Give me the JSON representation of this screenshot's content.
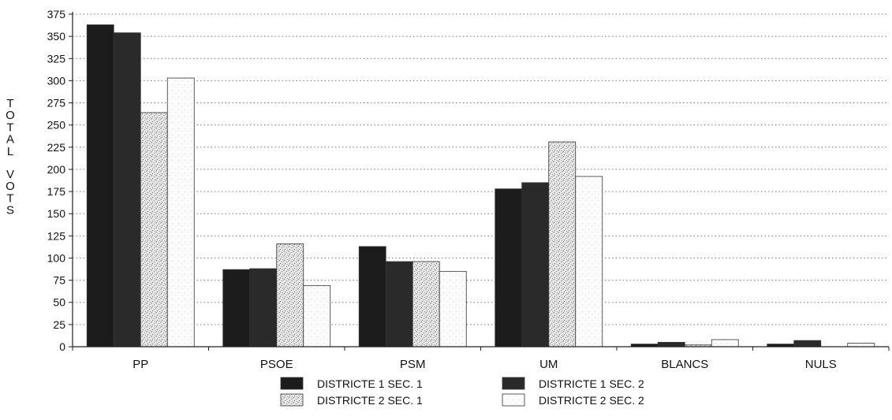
{
  "chart_data": {
    "type": "bar",
    "title": "",
    "xlabel": "",
    "ylabel": "TOTAL VOTS",
    "ylim": [
      0,
      375
    ],
    "yticks": [
      0,
      25,
      50,
      75,
      100,
      125,
      150,
      175,
      200,
      225,
      250,
      275,
      300,
      325,
      350,
      375
    ],
    "grid": true,
    "legend_position": "bottom",
    "categories": [
      "PP",
      "PSOE",
      "PSM",
      "UM",
      "BLANCS",
      "NULS"
    ],
    "series": [
      {
        "name": "DISTRICTE 1 SEC. 1",
        "color": "#1c1c1c",
        "pattern": "solid-dark",
        "values": [
          363,
          87,
          113,
          178,
          3,
          3
        ]
      },
      {
        "name": "DISTRICTE 1 SEC. 2",
        "color": "#2a2a2a",
        "pattern": "solid-dark",
        "values": [
          354,
          88,
          96,
          185,
          5,
          7
        ]
      },
      {
        "name": "DISTRICTE 2 SEC. 1",
        "color": "#cfcfcf",
        "pattern": "stipple",
        "values": [
          264,
          116,
          96,
          231,
          2,
          0
        ]
      },
      {
        "name": "DISTRICTE 2 SEC. 2",
        "color": "#ffffff",
        "pattern": "light",
        "values": [
          303,
          69,
          85,
          192,
          8,
          4
        ]
      }
    ]
  }
}
